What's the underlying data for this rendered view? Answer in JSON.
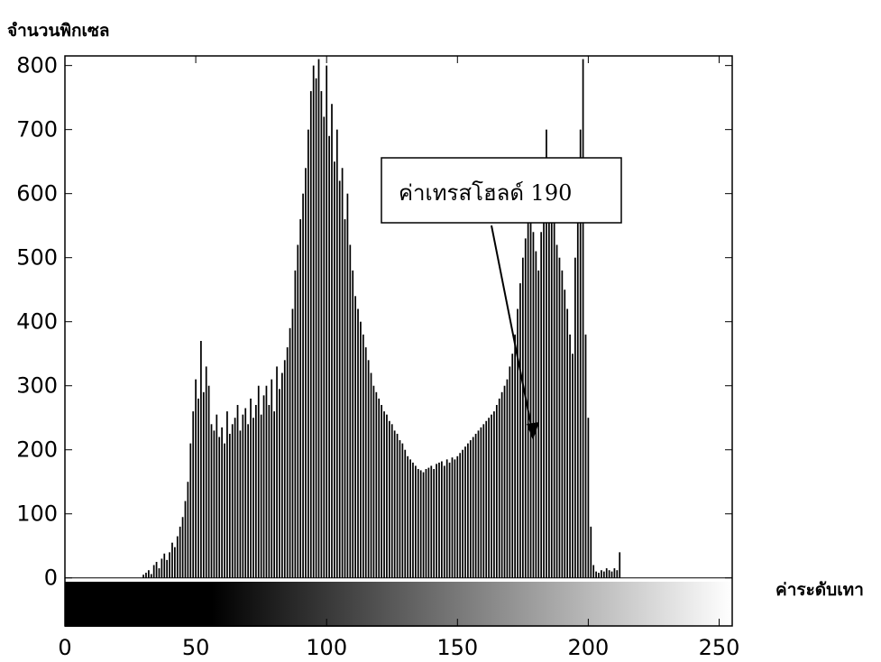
{
  "chart_data": {
    "type": "bar",
    "title": "",
    "ylabel": "จำนวนพิกเซล",
    "xlabel": "ค่าระดับเทา",
    "xlim": [
      0,
      255
    ],
    "ylim": [
      -75,
      815
    ],
    "x_ticks": [
      0,
      50,
      100,
      150,
      200,
      250
    ],
    "y_ticks": [
      0,
      100,
      200,
      300,
      400,
      500,
      600,
      700,
      800
    ],
    "grid": false,
    "colorbar": {
      "description": "grayscale gradient 0-255 shown below y=0",
      "from": "#000000",
      "to": "#ffffff"
    },
    "annotation": {
      "text": "ค่าเทรสโฮลด์ 190",
      "points_to_x": 180,
      "points_to_y": 235
    },
    "bar_color": "#000000",
    "values": [
      0,
      0,
      0,
      0,
      0,
      0,
      0,
      0,
      0,
      0,
      0,
      0,
      0,
      0,
      0,
      0,
      0,
      0,
      0,
      0,
      0,
      0,
      0,
      0,
      0,
      0,
      0,
      0,
      0,
      0,
      5,
      8,
      12,
      6,
      20,
      25,
      15,
      30,
      38,
      28,
      40,
      55,
      48,
      65,
      80,
      95,
      120,
      150,
      210,
      260,
      310,
      280,
      370,
      290,
      330,
      300,
      240,
      230,
      255,
      220,
      235,
      210,
      260,
      225,
      240,
      250,
      270,
      230,
      255,
      265,
      240,
      280,
      250,
      270,
      300,
      255,
      285,
      300,
      270,
      310,
      260,
      330,
      295,
      320,
      340,
      360,
      390,
      420,
      480,
      520,
      560,
      600,
      640,
      700,
      760,
      800,
      780,
      810,
      760,
      720,
      800,
      690,
      740,
      650,
      700,
      620,
      640,
      560,
      600,
      520,
      480,
      440,
      420,
      400,
      380,
      360,
      340,
      320,
      300,
      290,
      280,
      270,
      260,
      255,
      245,
      240,
      230,
      225,
      215,
      210,
      200,
      190,
      185,
      180,
      175,
      170,
      168,
      165,
      170,
      172,
      175,
      170,
      178,
      180,
      182,
      175,
      185,
      180,
      188,
      185,
      190,
      195,
      200,
      205,
      210,
      215,
      220,
      225,
      230,
      235,
      240,
      245,
      250,
      255,
      260,
      270,
      280,
      290,
      300,
      310,
      330,
      350,
      380,
      420,
      460,
      500,
      530,
      560,
      575,
      540,
      510,
      480,
      540,
      600,
      700,
      640,
      580,
      560,
      520,
      500,
      480,
      450,
      420,
      380,
      350,
      500,
      600,
      700,
      810,
      380,
      250,
      80,
      20,
      10,
      8,
      12,
      10,
      15,
      12,
      10,
      15,
      12,
      40,
      0,
      0,
      0
    ]
  }
}
